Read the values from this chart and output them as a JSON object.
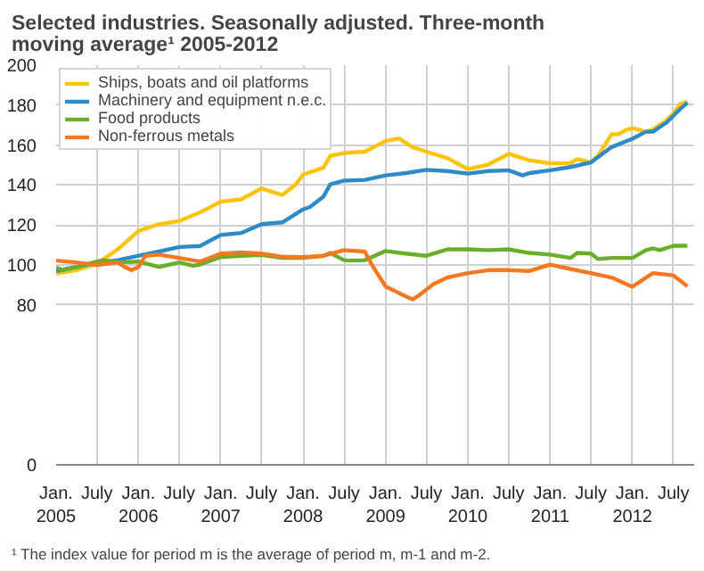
{
  "chart_data": {
    "type": "line",
    "title": "Selected industries. Seasonally adjusted. Three-month moving average¹ 2005-2012",
    "annotations": [
      "¹ The index value for period m is the average of period m, m-1 and m-2."
    ],
    "legend": "top left",
    "grid": true,
    "line_style": "solid",
    "ylim": [
      0,
      200
    ],
    "yticks": [
      0,
      80,
      100,
      120,
      140,
      160,
      180,
      200
    ],
    "xlim": [
      "2005-01",
      "2012-10"
    ],
    "xticks": [
      {
        "value": "2005-01",
        "label": "Jan.\n2005"
      },
      {
        "value": "2005-07",
        "label": "July"
      },
      {
        "value": "2006-01",
        "label": "Jan.\n2006"
      },
      {
        "value": "2006-07",
        "label": "July"
      },
      {
        "value": "2007-01",
        "label": "Jan.\n2007"
      },
      {
        "value": "2007-07",
        "label": "July"
      },
      {
        "value": "2008-01",
        "label": "Jan.\n2008"
      },
      {
        "value": "2008-07",
        "label": "July"
      },
      {
        "value": "2009-01",
        "label": "Jan.\n2009"
      },
      {
        "value": "2009-07",
        "label": "July"
      },
      {
        "value": "2010-01",
        "label": "Jan.\n2010"
      },
      {
        "value": "2010-07",
        "label": "July"
      },
      {
        "value": "2011-01",
        "label": "Jan.\n2011"
      },
      {
        "value": "2011-07",
        "label": "July"
      },
      {
        "value": "2012-01",
        "label": "Jan.\n2012"
      },
      {
        "value": "2012-07",
        "label": "July"
      }
    ],
    "series": [
      {
        "name": "Ships, boats and oil platforms",
        "color": "#fcc40f",
        "x": [
          "2005-01",
          "2005-04",
          "2005-07",
          "2005-10",
          "2006-01",
          "2006-04",
          "2006-07",
          "2006-10",
          "2007-01",
          "2007-04",
          "2007-07",
          "2007-10",
          "2007-12",
          "2008-01",
          "2008-04",
          "2008-05",
          "2008-07",
          "2008-10",
          "2009-01",
          "2009-03",
          "2009-05",
          "2009-07",
          "2009-10",
          "2010-01",
          "2010-04",
          "2010-07",
          "2010-10",
          "2011-01",
          "2011-04",
          "2011-05",
          "2011-07",
          "2011-08",
          "2011-10",
          "2011-11",
          "2011-12",
          "2012-01",
          "2012-03",
          "2012-04",
          "2012-06",
          "2012-07",
          "2012-08",
          "2012-09"
        ],
        "values": [
          95.7,
          97.4,
          100.7,
          107.8,
          117,
          120.4,
          122,
          126.3,
          131.7,
          132.8,
          138.3,
          135,
          140.4,
          145.2,
          148.7,
          154.6,
          156,
          156.7,
          162,
          163.3,
          159,
          156.7,
          153.5,
          148,
          150.2,
          155.6,
          152.4,
          150.9,
          151,
          153,
          151.3,
          154.6,
          165.4,
          165.5,
          167.4,
          168.5,
          166.7,
          167.8,
          172.4,
          175.9,
          180.5,
          181.6
        ]
      },
      {
        "name": "Machinery and equipment n.e.c.",
        "color": "#2e8bc6",
        "x": [
          "2005-01",
          "2005-04",
          "2005-07",
          "2005-10",
          "2006-01",
          "2006-04",
          "2006-07",
          "2006-10",
          "2007-01",
          "2007-04",
          "2007-07",
          "2007-10",
          "2008-01",
          "2008-02",
          "2008-04",
          "2008-05",
          "2008-07",
          "2008-10",
          "2009-01",
          "2009-04",
          "2009-07",
          "2009-10",
          "2010-01",
          "2010-04",
          "2010-07",
          "2010-09",
          "2010-10",
          "2011-01",
          "2011-04",
          "2011-07",
          "2011-10",
          "2012-01",
          "2012-03",
          "2012-04",
          "2012-06",
          "2012-08",
          "2012-09"
        ],
        "values": [
          97,
          99,
          101.3,
          102.4,
          104.6,
          106.7,
          109,
          109.5,
          115,
          116,
          120.4,
          121.3,
          127.8,
          129,
          134.3,
          140.4,
          142.2,
          142.6,
          144.8,
          146,
          147.6,
          147,
          145.7,
          147,
          147.4,
          144.8,
          146,
          147.4,
          149,
          151.3,
          159,
          163.2,
          166.7,
          166.7,
          171.3,
          178.2,
          181.2
        ]
      },
      {
        "name": "Food products",
        "color": "#6aae2b",
        "x": [
          "2005-01",
          "2005-02",
          "2005-04",
          "2005-07",
          "2005-08",
          "2005-10",
          "2006-01",
          "2006-04",
          "2006-07",
          "2006-09",
          "2006-10",
          "2007-01",
          "2007-04",
          "2007-07",
          "2007-10",
          "2008-01",
          "2008-04",
          "2008-05",
          "2008-07",
          "2008-08",
          "2008-10",
          "2009-01",
          "2009-04",
          "2009-07",
          "2009-10",
          "2010-01",
          "2010-04",
          "2010-07",
          "2010-10",
          "2011-01",
          "2011-04",
          "2011-05",
          "2011-07",
          "2011-08",
          "2011-10",
          "2012-01",
          "2012-03",
          "2012-04",
          "2012-05",
          "2012-07",
          "2012-09"
        ],
        "values": [
          98.7,
          97.4,
          99,
          101.7,
          102.4,
          101.3,
          101.7,
          99,
          101.3,
          99.6,
          100.2,
          103.9,
          104.6,
          105,
          103.5,
          103.5,
          104.6,
          106,
          102.4,
          102.2,
          102.4,
          107,
          105.7,
          104.6,
          107.8,
          107.8,
          107.4,
          107.8,
          106,
          105.2,
          103.5,
          106,
          105.7,
          103,
          103.5,
          103.5,
          107.4,
          108.3,
          107.4,
          109.6,
          109.6
        ]
      },
      {
        "name": "Non-ferrous metals",
        "color": "#f47920",
        "x": [
          "2005-01",
          "2005-04",
          "2005-07",
          "2005-10",
          "2005-11",
          "2005-12",
          "2006-01",
          "2006-02",
          "2006-04",
          "2006-07",
          "2006-10",
          "2007-01",
          "2007-04",
          "2007-07",
          "2007-10",
          "2008-01",
          "2008-04",
          "2008-07",
          "2008-08",
          "2008-10",
          "2008-11",
          "2009-01",
          "2009-04",
          "2009-05",
          "2009-06",
          "2009-08",
          "2009-10",
          "2010-01",
          "2010-04",
          "2010-07",
          "2010-10",
          "2011-01",
          "2011-04",
          "2011-07",
          "2011-10",
          "2012-01",
          "2012-02",
          "2012-04",
          "2012-07",
          "2012-09"
        ],
        "values": [
          102.2,
          101.3,
          100,
          101.3,
          99,
          97.4,
          99,
          104.6,
          105.2,
          103.5,
          101.7,
          105.7,
          106.3,
          105.7,
          104.1,
          103.9,
          104.6,
          107.4,
          107.2,
          106.7,
          100.2,
          89.3,
          84.3,
          82.8,
          85,
          90.4,
          93.7,
          95.9,
          97.4,
          97.4,
          97,
          100.2,
          98,
          95.9,
          93.7,
          89.1,
          91.5,
          95.9,
          94.8,
          89.3
        ]
      }
    ]
  }
}
